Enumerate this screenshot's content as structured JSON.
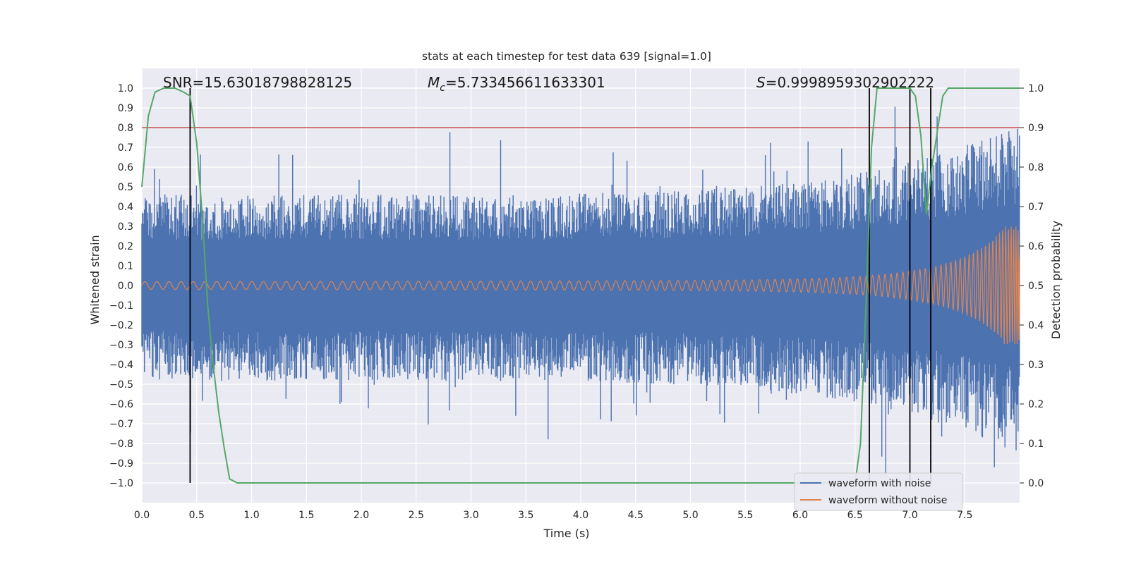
{
  "chart_data": {
    "type": "line",
    "title": "stats at each timestep for test data 639 [signal=1.0]",
    "xlabel": "Time (s)",
    "ylabel": "Whitened strain",
    "y2label": "Detection probability",
    "xlim": [
      0.0,
      8.0
    ],
    "ylim": [
      -1.1,
      1.1
    ],
    "y2lim": [
      -0.05,
      1.05
    ],
    "xticks": [
      "0.0",
      "0.5",
      "1.0",
      "1.5",
      "2.0",
      "2.5",
      "3.0",
      "3.5",
      "4.0",
      "4.5",
      "5.0",
      "5.5",
      "6.0",
      "6.5",
      "7.0",
      "7.5"
    ],
    "yticks": [
      "1.0",
      "0.9",
      "0.8",
      "0.7",
      "0.6",
      "0.5",
      "0.4",
      "0.3",
      "0.2",
      "0.1",
      "0.0",
      "−0.1",
      "−0.2",
      "−0.3",
      "−0.4",
      "−0.5",
      "−0.6",
      "−0.7",
      "−0.8",
      "−0.9",
      "−1.0"
    ],
    "y2ticks": [
      "1.0",
      "0.9",
      "0.8",
      "0.7",
      "0.6",
      "0.5",
      "0.4",
      "0.3",
      "0.2",
      "0.1",
      "0.0"
    ],
    "annotations": {
      "snr": "SNR=15.63018798828125",
      "mc_symbol": "M",
      "mc_sub": "c",
      "mc_value": "=5.733456611633301",
      "s_symbol": "S",
      "s_value": "=0.9998959302902222"
    },
    "threshold": {
      "y2": 0.9,
      "color": "#c44e52"
    },
    "vlines_x": [
      0.44,
      6.63,
      7.0,
      7.19
    ],
    "series": [
      {
        "name": "waveform with noise",
        "color": "#4c72b0",
        "axis": "left",
        "kind": "noise",
        "envelope_base": 0.42,
        "envelope_end": 0.75,
        "duration": 8.0
      },
      {
        "name": "waveform without noise",
        "color": "#dd8452",
        "axis": "left",
        "kind": "chirp",
        "amp_start": 0.02,
        "amp_end": 0.3,
        "duration": 8.0
      },
      {
        "name": "detection probability",
        "color": "#55a868",
        "axis": "right",
        "kind": "curve",
        "x": [
          0.0,
          0.06,
          0.12,
          0.2,
          0.3,
          0.38,
          0.44,
          0.5,
          0.55,
          0.6,
          0.65,
          0.7,
          0.75,
          0.8,
          0.87,
          1.0,
          2.0,
          3.0,
          3.2,
          4.0,
          4.9,
          5.5,
          6.0,
          6.5,
          6.55,
          6.6,
          6.65,
          6.7,
          7.0,
          7.05,
          7.1,
          7.15,
          7.2,
          7.3,
          7.35,
          7.5,
          8.0
        ],
        "y": [
          0.75,
          0.93,
          0.99,
          1.0,
          1.0,
          0.99,
          0.98,
          0.86,
          0.68,
          0.45,
          0.3,
          0.18,
          0.09,
          0.01,
          0.0,
          0.0,
          0.0,
          0.0,
          0.0,
          0.0,
          0.0,
          0.0,
          0.0,
          0.0,
          0.1,
          0.45,
          0.85,
          1.0,
          1.0,
          0.98,
          0.88,
          0.68,
          0.8,
          0.98,
          1.0,
          1.0,
          1.0
        ]
      }
    ],
    "legend": {
      "location": "lower-right",
      "entries": [
        {
          "label": "waveform with noise",
          "color": "#4c72b0"
        },
        {
          "label": "waveform without noise",
          "color": "#dd8452"
        }
      ]
    }
  }
}
